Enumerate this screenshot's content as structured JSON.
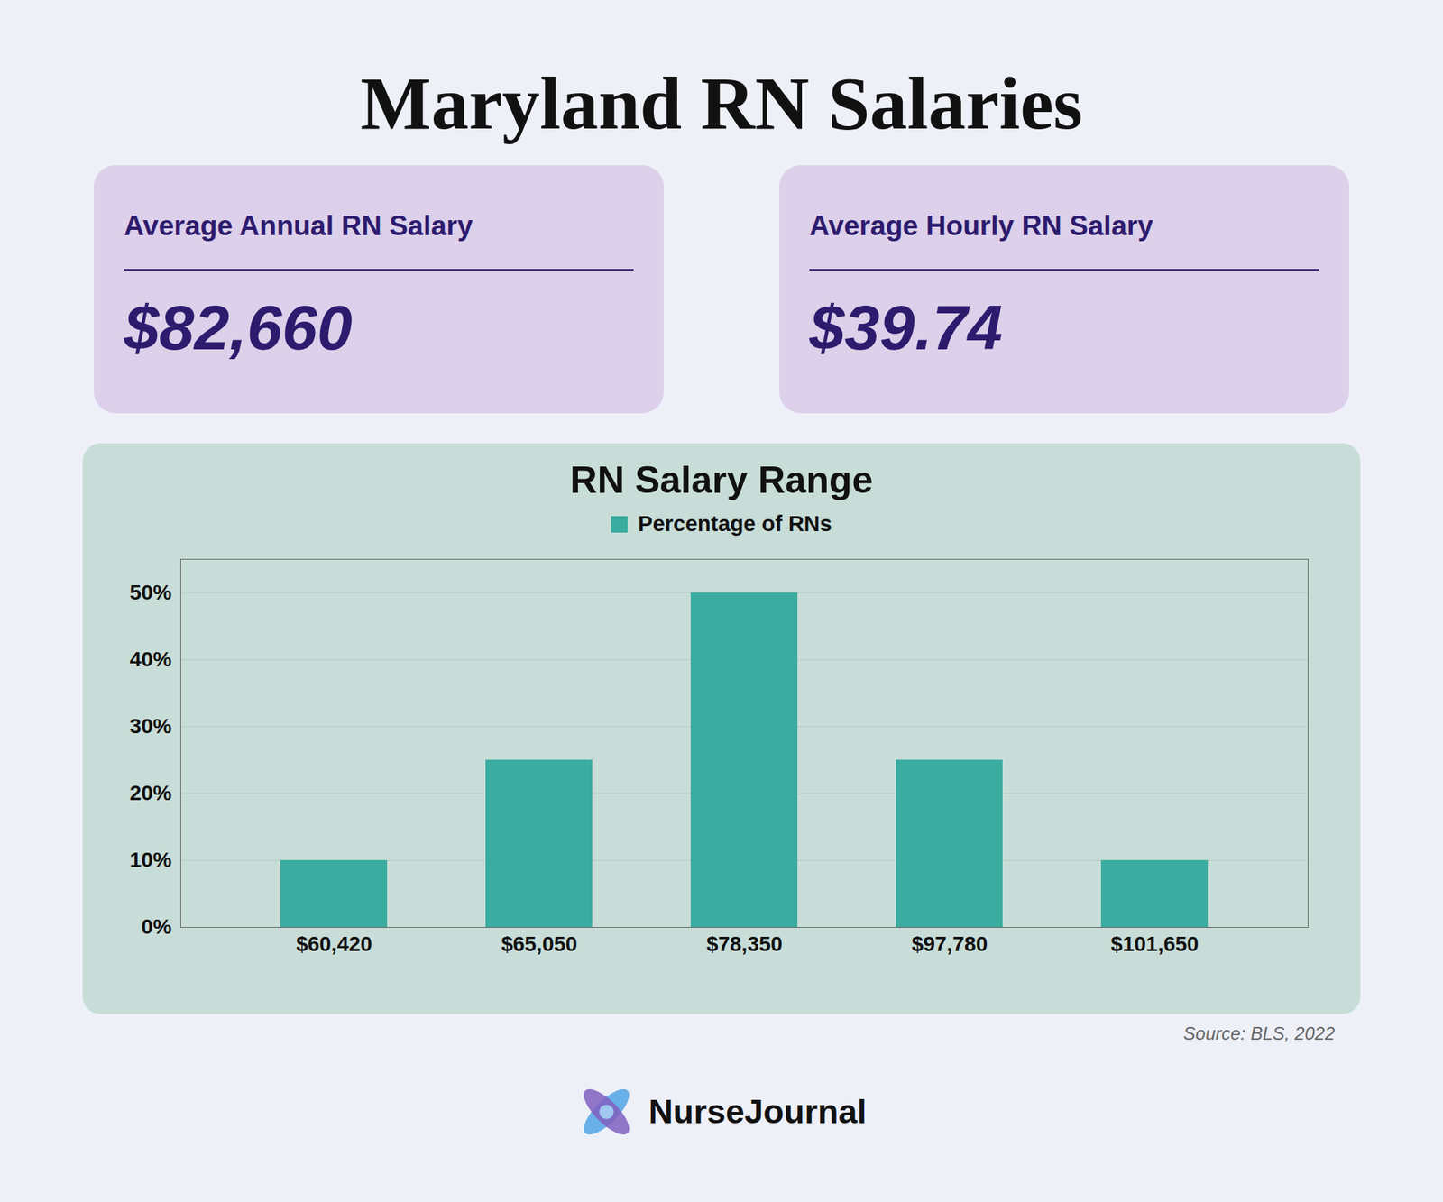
{
  "chart_data": {
    "type": "bar",
    "title": "Maryland RN Salaries",
    "subtitle": "RN Salary Range",
    "categories": [
      "$60,420",
      "$65,050",
      "$78,350",
      "$97,780",
      "$101,650"
    ],
    "series": [
      {
        "name": "Percentage of RNs",
        "color": "#3aada0",
        "values": [
          10,
          25,
          50,
          25,
          10
        ]
      }
    ],
    "ylim": [
      0,
      55
    ],
    "yticks": [
      {
        "value": 0,
        "label": "0%"
      },
      {
        "value": 10,
        "label": "10%"
      },
      {
        "value": 20,
        "label": "20%"
      },
      {
        "value": 30,
        "label": "30%"
      },
      {
        "value": 40,
        "label": "40%"
      },
      {
        "value": 50,
        "label": "50%"
      }
    ],
    "grid": true,
    "legend": "top",
    "annotations": [
      "Average Annual RN Salary",
      "$82,660",
      "Average Hourly RN Salary",
      "$39.74",
      "Source: BLS, 2022",
      "NurseJournal"
    ]
  }
}
